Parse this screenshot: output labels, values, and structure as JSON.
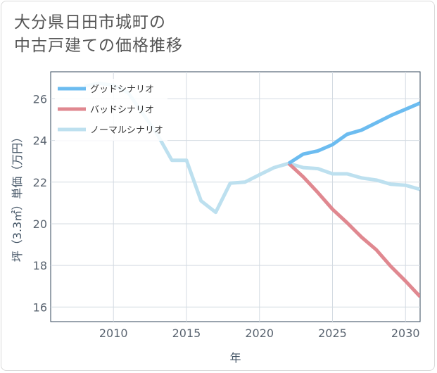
{
  "title_lines": [
    "大分県日田市城町の",
    "中古戸建ての価格推移"
  ],
  "chart_data": {
    "type": "line",
    "xlabel": "年",
    "ylabel": "坪（3.3㎡）単価（万円）",
    "xlim": [
      2005.7,
      2031
    ],
    "ylim": [
      15.3,
      27.3
    ],
    "xticks": [
      2010,
      2015,
      2020,
      2025,
      2030
    ],
    "yticks": [
      16,
      18,
      20,
      22,
      24,
      26
    ],
    "grid": true,
    "legend_position": "top-left",
    "series": [
      {
        "name": "グッドシナリオ",
        "color": "#6cbcf0",
        "x": [
          2022,
          2023,
          2024,
          2025,
          2026,
          2027,
          2028,
          2029,
          2030,
          2031
        ],
        "y": [
          22.9,
          23.35,
          23.5,
          23.8,
          24.3,
          24.5,
          24.85,
          25.2,
          25.5,
          25.8
        ]
      },
      {
        "name": "バッドシナリオ",
        "color": "#e08890",
        "x": [
          2022,
          2023,
          2024,
          2025,
          2026,
          2027,
          2028,
          2029,
          2030,
          2031
        ],
        "y": [
          22.9,
          22.25,
          21.5,
          20.7,
          20.05,
          19.35,
          18.75,
          17.95,
          17.25,
          16.5
        ]
      },
      {
        "name": "ノーマルシナリオ",
        "color": "#bde0ef",
        "x": [
          2008,
          2009,
          2010,
          2011,
          2012,
          2013,
          2014,
          2015,
          2016,
          2017,
          2018,
          2019,
          2020,
          2021,
          2022,
          2023,
          2024,
          2025,
          2026,
          2027,
          2028,
          2029,
          2030,
          2031
        ],
        "y": [
          26.6,
          26.75,
          26.65,
          26.3,
          25.3,
          24.3,
          23.05,
          23.05,
          21.1,
          20.55,
          21.95,
          22.0,
          22.35,
          22.7,
          22.9,
          22.7,
          22.65,
          22.4,
          22.4,
          22.2,
          22.1,
          21.9,
          21.85,
          21.65
        ]
      }
    ]
  }
}
